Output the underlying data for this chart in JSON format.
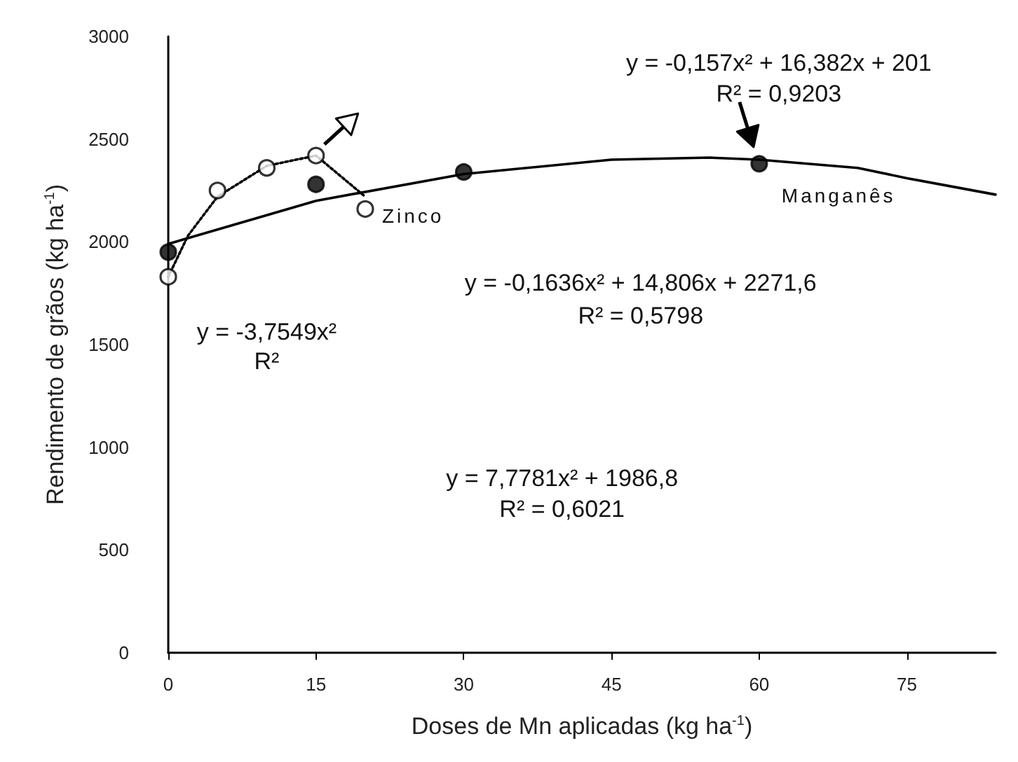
{
  "chart_data": {
    "type": "scatter",
    "xlabel": "Doses de Mn aplicadas (kg ha$^{-1}$)",
    "ylabel": "Rendimento de grãos (kg ha$^{-1}$)",
    "xlim": [
      0,
      84
    ],
    "xticks": [
      0,
      15,
      30,
      45,
      60,
      75
    ],
    "ylim": [
      0,
      3000
    ],
    "yticks": [
      0,
      500,
      1000,
      1500,
      2000,
      2500,
      3000
    ],
    "grid": false,
    "marker": "circle",
    "series": [
      {
        "name": "Zinco",
        "color": "#ffffff",
        "x": [
          0,
          5,
          10,
          15,
          20
        ],
        "values": [
          1830,
          2250,
          2360,
          2420,
          2160
        ]
      },
      {
        "type": "line",
        "line_style": "dotted",
        "marker": "none",
        "color": "#000000",
        "x": [
          0,
          2,
          5,
          10,
          15,
          20
        ],
        "values": [
          1830,
          2030,
          2220,
          2370,
          2420,
          2220
        ]
      },
      {
        "name": "Manganês",
        "color": "#000000",
        "x": [
          0,
          15,
          30,
          60
        ],
        "values": [
          1950,
          2280,
          2340,
          2380
        ]
      },
      {
        "type": "line",
        "line_style": "solid",
        "marker": "none",
        "color": "#000000",
        "x": [
          0,
          15,
          30,
          45,
          55,
          60,
          70,
          75,
          84
        ],
        "values": [
          1990,
          2200,
          2330,
          2400,
          2410,
          2400,
          2360,
          2310,
          2230
        ]
      }
    ],
    "annotations": [
      "y = -0,157x² + 16,382x + 201",
      "R² = 0,9203",
      "y = -3,7549x²",
      "R²",
      "y = -0,1636x² + 14,806x + 2271,6",
      "R² = 0,5798",
      "y = 7,7781x² + 1986,8",
      "R² = 0,6021"
    ]
  }
}
